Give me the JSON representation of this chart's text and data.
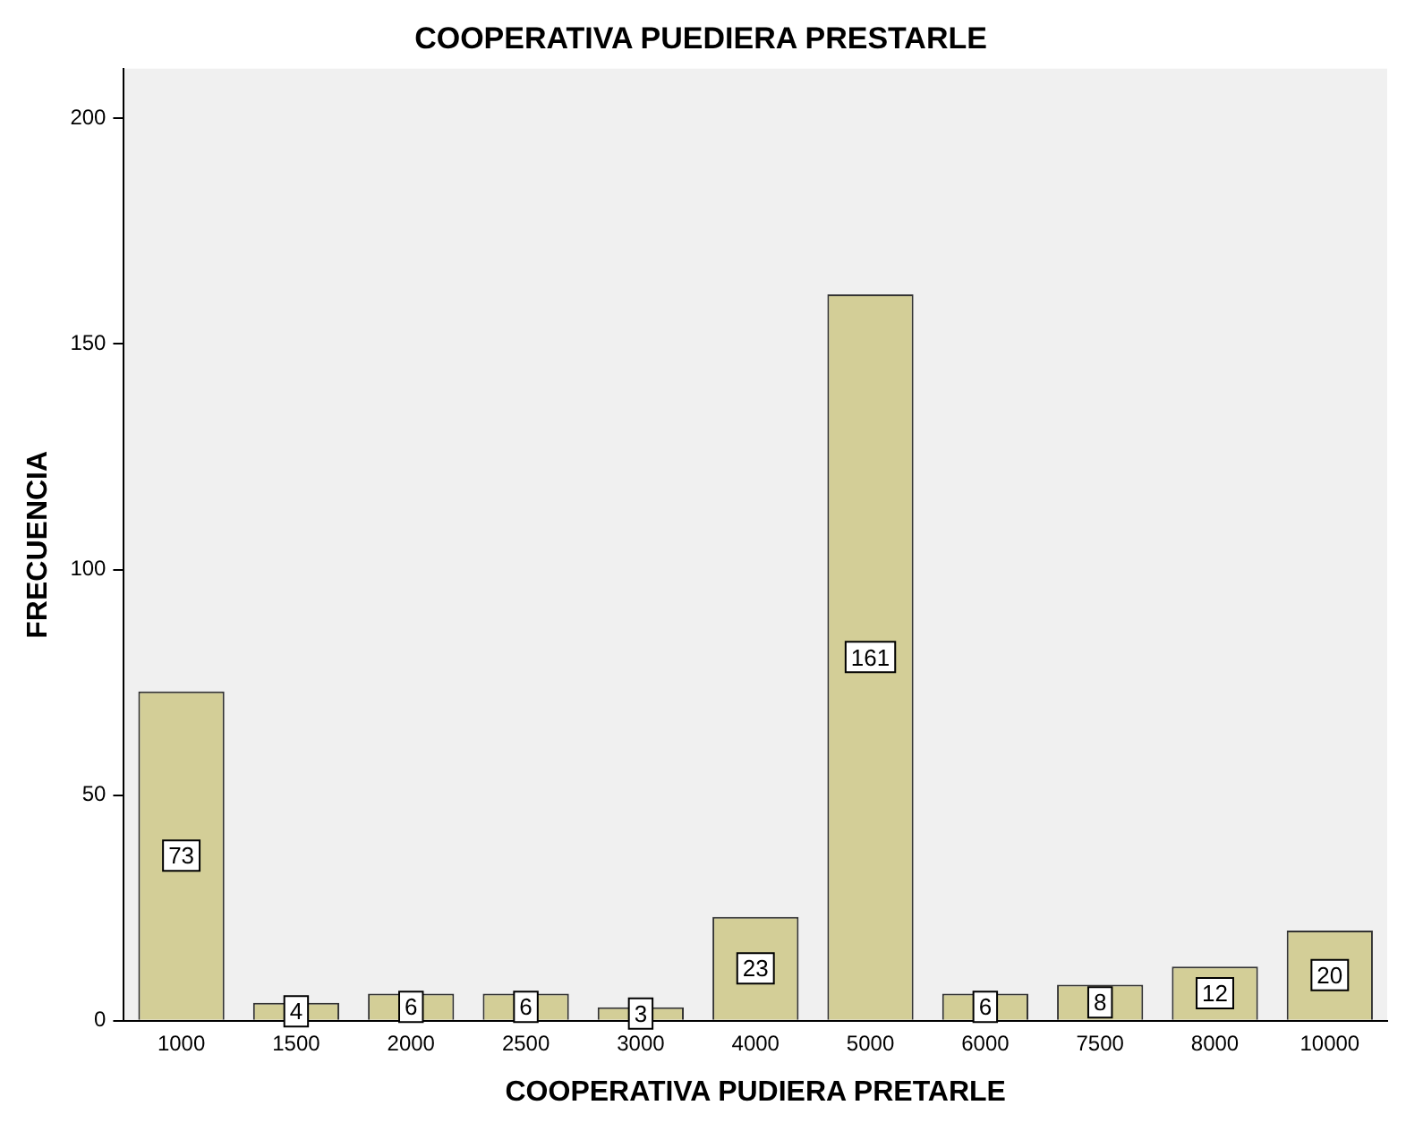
{
  "chart_data": {
    "type": "bar",
    "title": "COOPERATIVA PUEDIERA PRESTARLE",
    "xlabel": "COOPERATIVA PUDIERA PRETARLE",
    "ylabel": "FRECUENCIA",
    "categories": [
      "1000",
      "1500",
      "2000",
      "2500",
      "3000",
      "4000",
      "5000",
      "6000",
      "7500",
      "8000",
      "10000"
    ],
    "values": [
      73,
      4,
      6,
      6,
      3,
      23,
      161,
      6,
      8,
      12,
      20
    ],
    "color": "#d3ce97",
    "ylim": [
      0,
      211
    ],
    "yticks": [
      0,
      50,
      100,
      150,
      200
    ],
    "grid": false,
    "legend": false,
    "data_labels": true
  }
}
